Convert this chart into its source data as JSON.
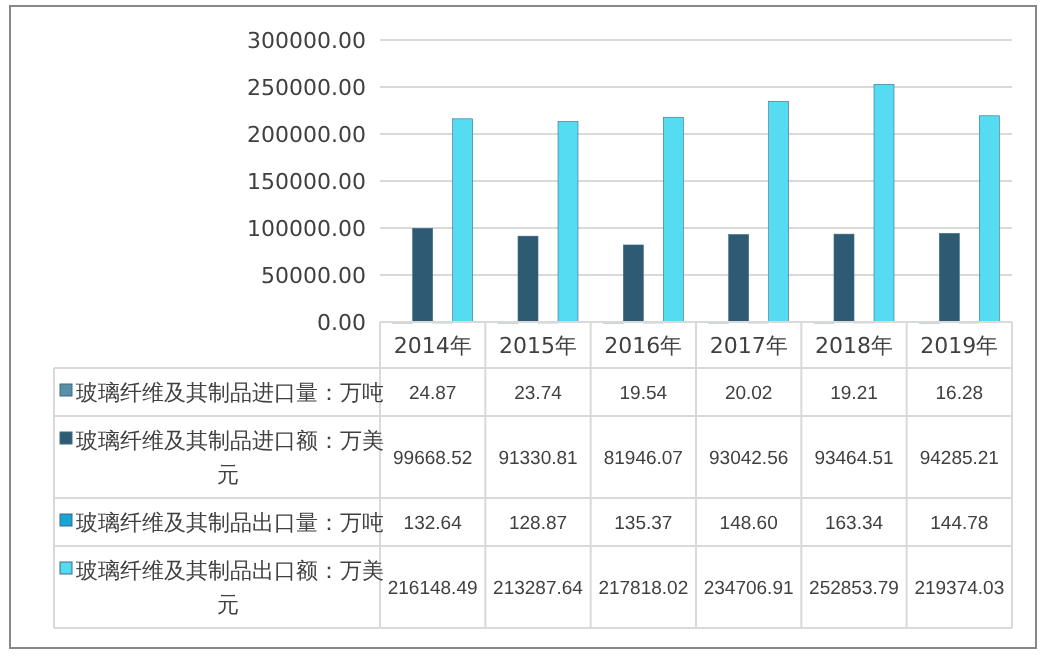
{
  "chart_data": {
    "type": "bar",
    "categories": [
      "2014年",
      "2015年",
      "2016年",
      "2017年",
      "2018年",
      "2019年"
    ],
    "series": [
      {
        "name": "玻璃纤维及其制品进口量：万吨",
        "color": "#5a8fa8",
        "values": [
          24.87,
          23.74,
          19.54,
          20.02,
          19.21,
          16.28
        ],
        "value_labels": [
          "24.87",
          "23.74",
          "19.54",
          "20.02",
          "19.21",
          "16.28"
        ]
      },
      {
        "name": "玻璃纤维及其制品进口额：万美元",
        "color": "#2e5a74",
        "values": [
          99668.52,
          91330.81,
          81946.07,
          93042.56,
          93464.51,
          94285.21
        ],
        "value_labels": [
          "99668.52",
          "91330.81",
          "81946.07",
          "93042.56",
          "93464.51",
          "94285.21"
        ]
      },
      {
        "name": "玻璃纤维及其制品出口量：万吨",
        "color": "#1aa3d6",
        "values": [
          132.64,
          128.87,
          135.37,
          148.6,
          163.34,
          144.78
        ],
        "value_labels": [
          "132.64",
          "128.87",
          "135.37",
          "148.60",
          "163.34",
          "144.78"
        ]
      },
      {
        "name": "玻璃纤维及其制品出口额：万美元",
        "color": "#55dcf2",
        "values": [
          216148.49,
          213287.64,
          217818.02,
          234706.91,
          252853.79,
          219374.03
        ],
        "value_labels": [
          "216148.49",
          "213287.64",
          "217818.02",
          "234706.91",
          "252853.79",
          "219374.03"
        ]
      }
    ],
    "ylim": [
      0,
      300000
    ],
    "yticks": [
      {
        "value": 0,
        "label": "0.00"
      },
      {
        "value": 50000,
        "label": "50000.00"
      },
      {
        "value": 100000,
        "label": "100000.00"
      },
      {
        "value": 150000,
        "label": "150000.00"
      },
      {
        "value": 200000,
        "label": "200000.00"
      },
      {
        "value": 250000,
        "label": "250000.00"
      },
      {
        "value": 300000,
        "label": "300000.00"
      }
    ],
    "grid": "y",
    "legend": "bottom"
  }
}
